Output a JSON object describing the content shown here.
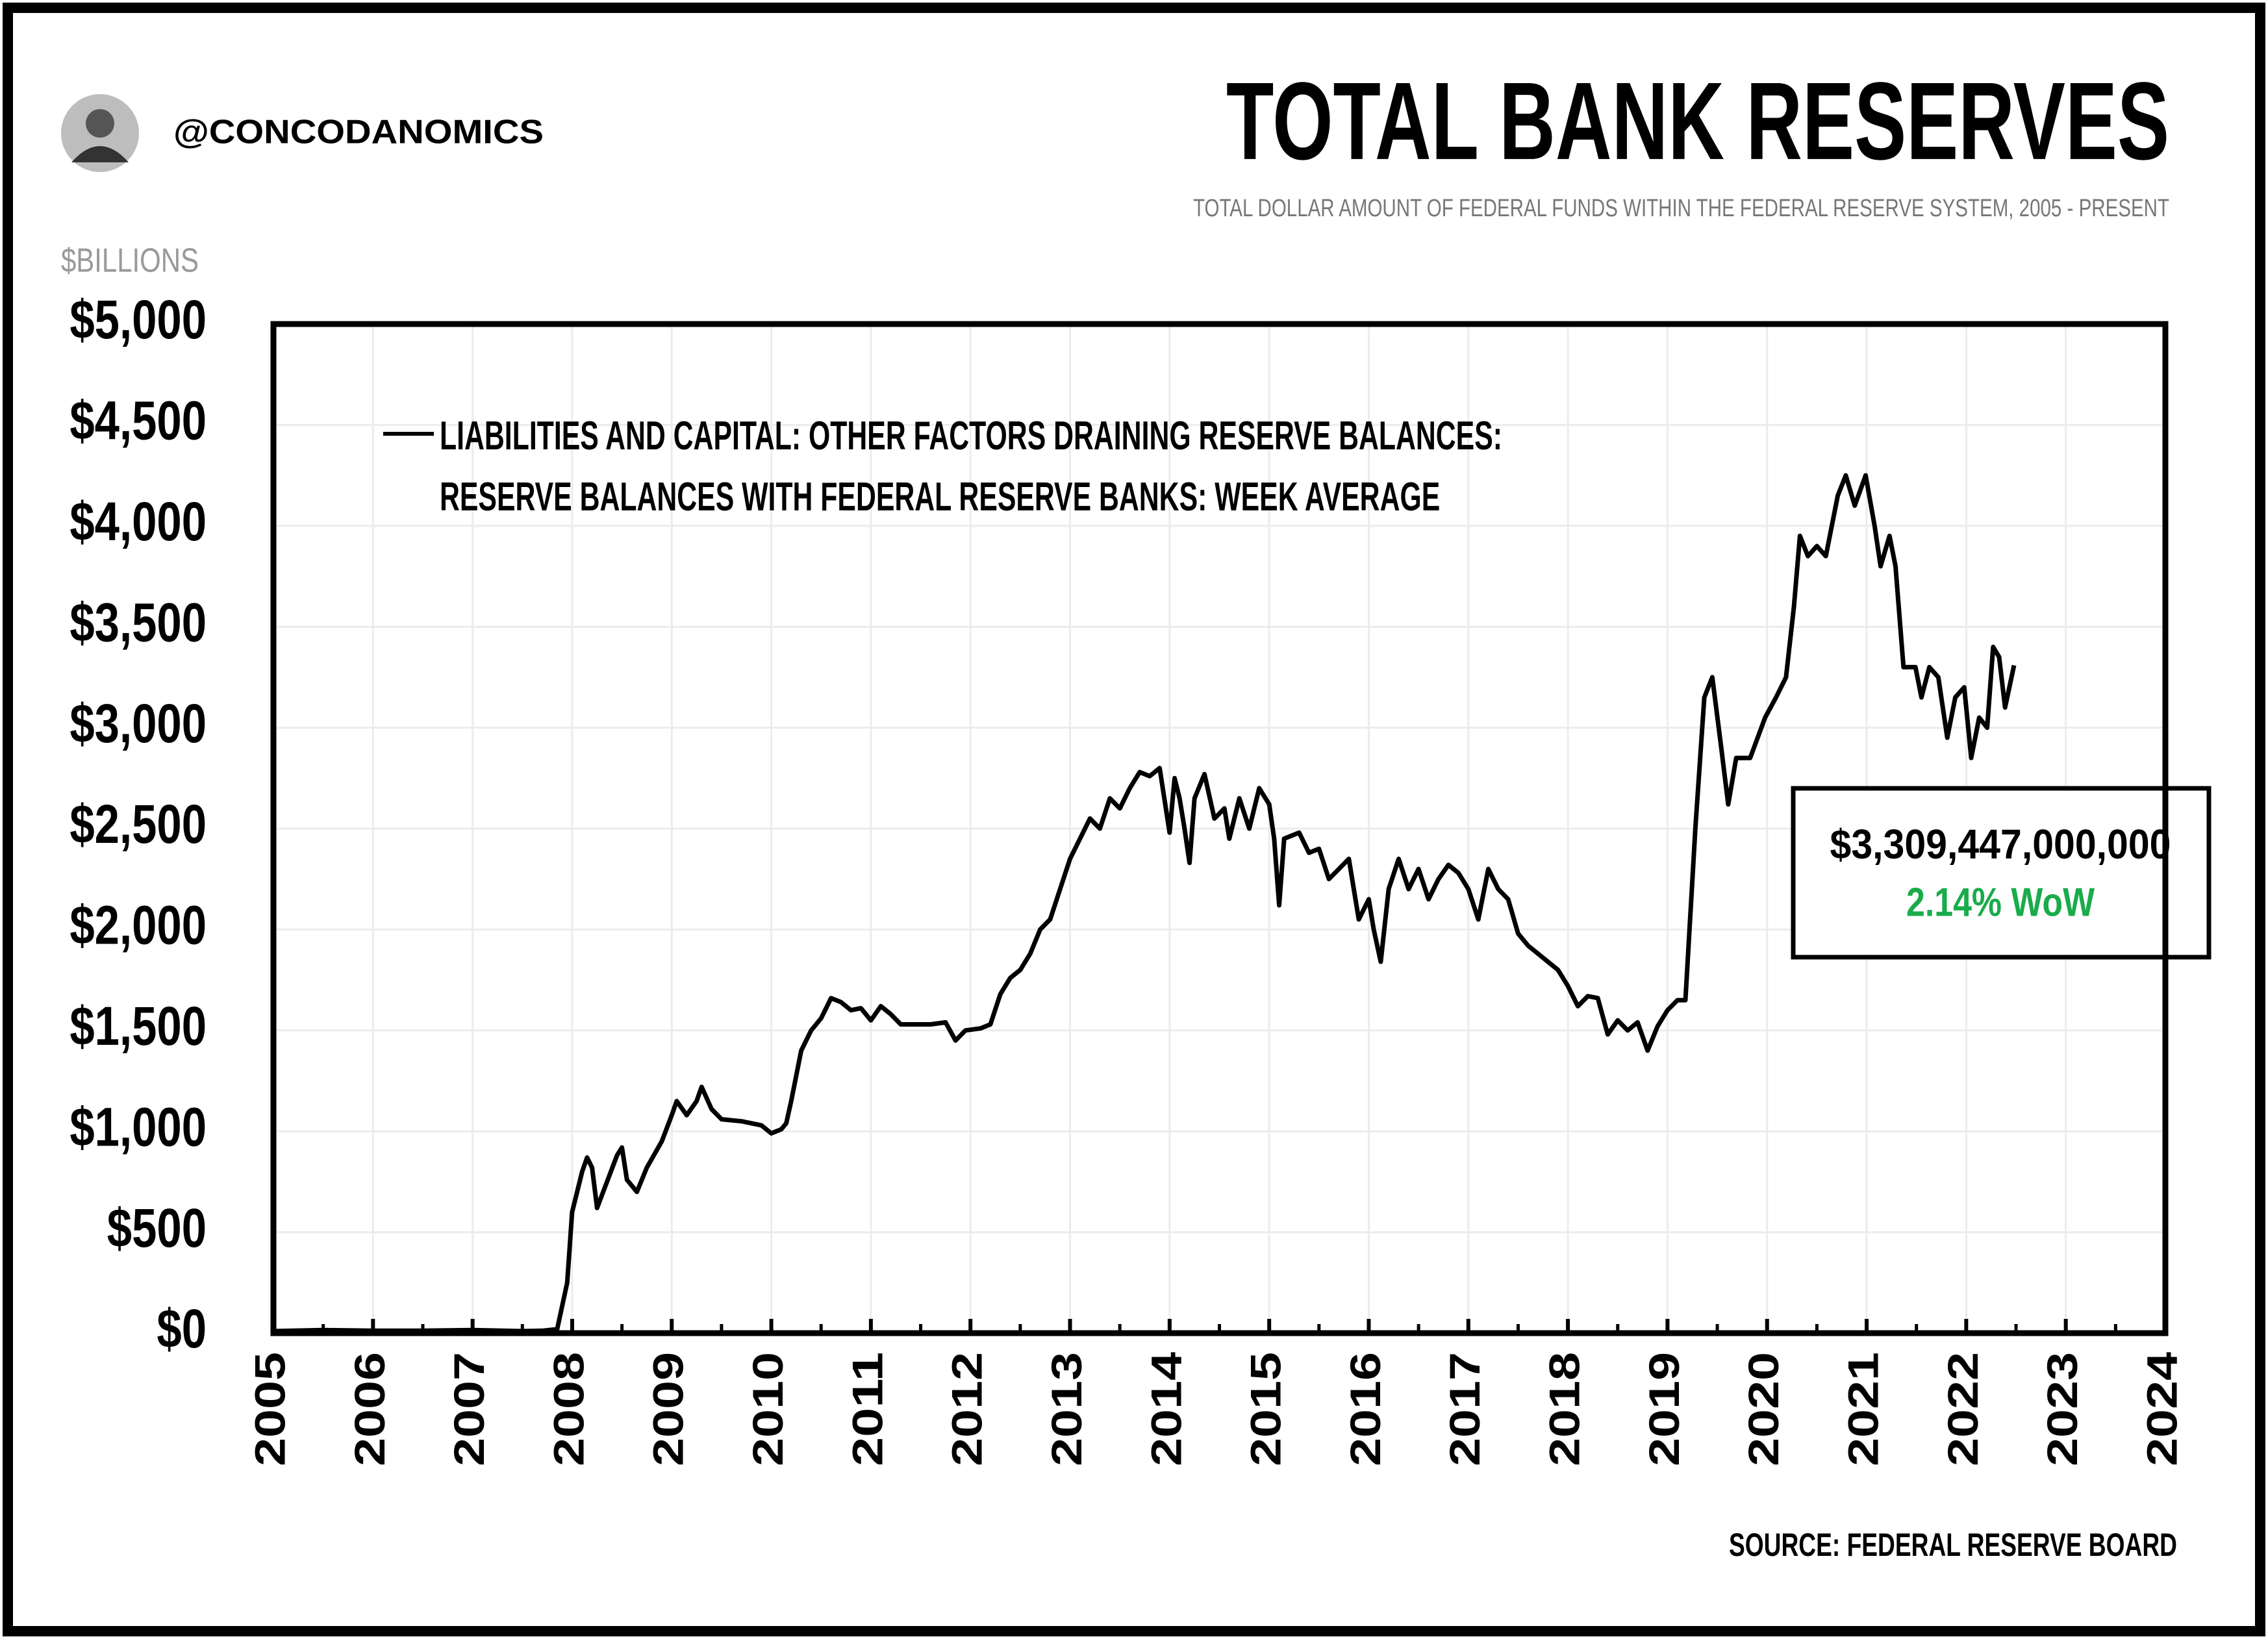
{
  "handle": "@CONCODANOMICS",
  "chart_data": {
    "type": "line",
    "title": "TOTAL BANK RESERVES",
    "subtitle": "TOTAL DOLLAR AMOUNT OF FEDERAL FUNDS WITHIN THE FEDERAL RESERVE SYSTEM, 2005 - PRESENT",
    "y_label": "$BILLIONS",
    "source": "SOURCE: FEDERAL RESERVE BOARD",
    "annotation": {
      "value": "$3,309,447,000,000",
      "change": "2.14% WoW",
      "change_color": "#1aab4b"
    },
    "xlim": [
      2005,
      2024
    ],
    "xticks": [
      2005,
      2006,
      2007,
      2008,
      2009,
      2010,
      2011,
      2012,
      2013,
      2014,
      2015,
      2016,
      2017,
      2018,
      2019,
      2020,
      2021,
      2022,
      2023,
      2024
    ],
    "ylim": [
      0,
      5000
    ],
    "yticks": [
      {
        "value": 0,
        "label": "$0"
      },
      {
        "value": 500,
        "label": "$500"
      },
      {
        "value": 1000,
        "label": "$1,000"
      },
      {
        "value": 1500,
        "label": "$1,500"
      },
      {
        "value": 2000,
        "label": "$2,000"
      },
      {
        "value": 2500,
        "label": "$2,500"
      },
      {
        "value": 3000,
        "label": "$3,000"
      },
      {
        "value": 3500,
        "label": "$3,500"
      },
      {
        "value": 4000,
        "label": "$4,000"
      },
      {
        "value": 4500,
        "label": "$4,500"
      },
      {
        "value": 5000,
        "label": "$5,000"
      }
    ],
    "grid": true,
    "x": [
      2005.0,
      2005.5,
      2006.0,
      2006.5,
      2007.0,
      2007.5,
      2007.7,
      2007.85,
      2007.95,
      2008.0,
      2008.1,
      2008.15,
      2008.2,
      2008.25,
      2008.35,
      2008.45,
      2008.5,
      2008.55,
      2008.65,
      2008.75,
      2008.9,
      2009.0,
      2009.05,
      2009.15,
      2009.25,
      2009.3,
      2009.4,
      2009.5,
      2009.7,
      2009.9,
      2010.0,
      2010.1,
      2010.15,
      2010.2,
      2010.3,
      2010.4,
      2010.5,
      2010.6,
      2010.7,
      2010.8,
      2010.9,
      2011.0,
      2011.1,
      2011.2,
      2011.3,
      2011.45,
      2011.6,
      2011.75,
      2011.85,
      2011.95,
      2012.1,
      2012.2,
      2012.3,
      2012.4,
      2012.5,
      2012.6,
      2012.7,
      2012.8,
      2012.9,
      2013.0,
      2013.1,
      2013.2,
      2013.3,
      2013.4,
      2013.5,
      2013.6,
      2013.7,
      2013.8,
      2013.9,
      2014.0,
      2014.05,
      2014.1,
      2014.15,
      2014.2,
      2014.25,
      2014.35,
      2014.45,
      2014.55,
      2014.6,
      2014.7,
      2014.8,
      2014.9,
      2015.0,
      2015.05,
      2015.1,
      2015.15,
      2015.3,
      2015.4,
      2015.5,
      2015.6,
      2015.7,
      2015.8,
      2015.9,
      2016.0,
      2016.05,
      2016.12,
      2016.2,
      2016.3,
      2016.4,
      2016.5,
      2016.6,
      2016.7,
      2016.8,
      2016.9,
      2017.0,
      2017.1,
      2017.2,
      2017.3,
      2017.4,
      2017.5,
      2017.6,
      2017.7,
      2017.8,
      2017.9,
      2018.0,
      2018.1,
      2018.2,
      2018.3,
      2018.4,
      2018.5,
      2018.6,
      2018.7,
      2018.8,
      2018.9,
      2019.0,
      2019.1,
      2019.18,
      2019.28,
      2019.37,
      2019.45,
      2019.54,
      2019.61,
      2019.69,
      2019.83,
      2019.98,
      2020.09,
      2020.19,
      2020.27,
      2020.33,
      2020.41,
      2020.5,
      2020.59,
      2020.71,
      2020.79,
      2020.88,
      2020.99,
      2021.08,
      2021.14,
      2021.23,
      2021.29,
      2021.37,
      2021.49,
      2021.55,
      2021.63,
      2021.72,
      2021.81,
      2021.89,
      2021.98,
      2022.05,
      2022.13,
      2022.21,
      2022.27,
      2022.33,
      2022.39,
      2022.48
    ],
    "series": [
      {
        "name": "LIABILITIES AND CAPITAL: OTHER FACTORS DRAINING RESERVE BALANCES: RESERVE BALANCES WITH FEDERAL RESERVE BANKS: WEEK AVERAGE",
        "color": "#000000",
        "values": [
          10,
          15,
          12,
          12,
          15,
          10,
          12,
          20,
          250,
          600,
          800,
          870,
          820,
          620,
          750,
          880,
          920,
          760,
          700,
          820,
          950,
          1080,
          1150,
          1080,
          1150,
          1220,
          1110,
          1060,
          1050,
          1030,
          990,
          1010,
          1040,
          1150,
          1400,
          1500,
          1560,
          1660,
          1640,
          1600,
          1610,
          1550,
          1620,
          1580,
          1530,
          1530,
          1530,
          1540,
          1450,
          1500,
          1510,
          1530,
          1680,
          1760,
          1800,
          1880,
          2000,
          2050,
          2200,
          2350,
          2450,
          2550,
          2500,
          2650,
          2600,
          2700,
          2780,
          2760,
          2800,
          2480,
          2750,
          2650,
          2500,
          2330,
          2650,
          2770,
          2550,
          2600,
          2450,
          2650,
          2500,
          2700,
          2620,
          2450,
          2120,
          2450,
          2480,
          2380,
          2400,
          2250,
          2300,
          2350,
          2050,
          2150,
          2000,
          1840,
          2200,
          2350,
          2200,
          2300,
          2150,
          2250,
          2320,
          2280,
          2200,
          2050,
          2300,
          2200,
          2150,
          1980,
          1920,
          1880,
          1840,
          1800,
          1720,
          1620,
          1670,
          1660,
          1480,
          1550,
          1500,
          1540,
          1400,
          1520,
          1600,
          1650,
          1650,
          2500,
          3150,
          3250,
          2900,
          2620,
          2850,
          2850,
          3050,
          3150,
          3250,
          3600,
          3950,
          3850,
          3900,
          3850,
          4150,
          4250,
          4100,
          4250,
          4000,
          3800,
          3950,
          3800,
          3300,
          3300,
          3150,
          3300,
          3250,
          2950,
          3150,
          3200,
          2850,
          3050,
          3000,
          3400,
          3350,
          3100,
          3309
        ]
      }
    ]
  }
}
